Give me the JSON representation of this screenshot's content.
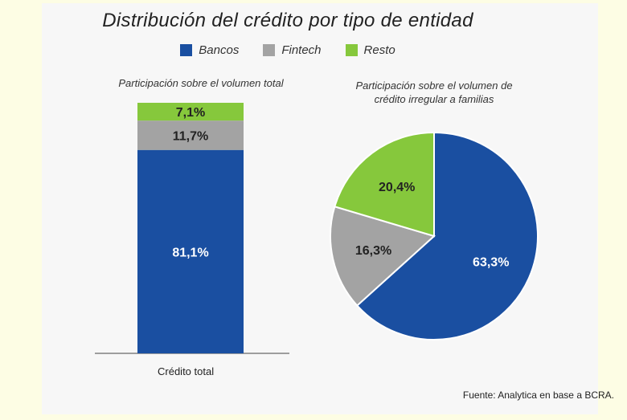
{
  "title": "Distribución del crédito por tipo de entidad",
  "legend": [
    {
      "label": "Bancos",
      "color": "#1a4fa1"
    },
    {
      "label": "Fintech",
      "color": "#a3a3a3"
    },
    {
      "label": "Resto",
      "color": "#86c83c"
    }
  ],
  "source": "Fuente: Analytica en base a BCRA.",
  "chart_data": [
    {
      "type": "bar",
      "stacked": true,
      "subtitle": "Participación sobre el volumen total",
      "categories": [
        "Crédito total"
      ],
      "series": [
        {
          "name": "Bancos",
          "values": [
            81.1
          ],
          "label": "81,1%"
        },
        {
          "name": "Fintech",
          "values": [
            11.7
          ],
          "label": "11,7%"
        },
        {
          "name": "Resto",
          "values": [
            7.1
          ],
          "label": "7,1%"
        }
      ]
    },
    {
      "type": "pie",
      "subtitle_lines": [
        "Participación sobre el volumen de",
        "crédito irregular a familias"
      ],
      "slices": [
        {
          "name": "Bancos",
          "value": 63.3,
          "label": "63,3%"
        },
        {
          "name": "Fintech",
          "value": 16.3,
          "label": "16,3%"
        },
        {
          "name": "Resto",
          "value": 20.4,
          "label": "20,4%"
        }
      ]
    }
  ]
}
